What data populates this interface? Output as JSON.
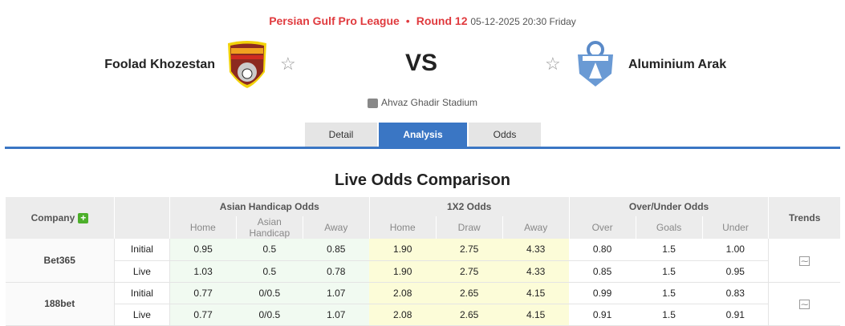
{
  "match": {
    "league": "Persian Gulf Pro League",
    "round": "Round 12",
    "datetime": "05-12-2025 20:30 Friday",
    "home": "Foolad Khozestan",
    "away": "Aluminium Arak",
    "vs": "VS",
    "venue": "Ahvaz Ghadir Stadium"
  },
  "tabs": [
    {
      "label": "Detail"
    },
    {
      "label": "Analysis",
      "active": true
    },
    {
      "label": "Odds"
    }
  ],
  "section_title": "Live Odds Comparison",
  "table": {
    "headers": {
      "company": "Company",
      "ah": "Asian Handicap Odds",
      "x2": "1X2 Odds",
      "ou": "Over/Under Odds",
      "trends": "Trends",
      "sub": [
        "Home",
        "Asian Handicap",
        "Away",
        "Home",
        "Draw",
        "Away",
        "Over",
        "Goals",
        "Under"
      ]
    },
    "companies": [
      {
        "name": "Bet365",
        "rows": [
          {
            "type": "Initial",
            "vals": [
              "0.95",
              "0.5",
              "0.85",
              "1.90",
              "2.75",
              "4.33",
              "0.80",
              "1.5",
              "1.00"
            ]
          },
          {
            "type": "Live",
            "vals": [
              "1.03",
              "0.5",
              "0.78",
              "1.90",
              "2.75",
              "4.33",
              "0.85",
              "1.5",
              "0.95"
            ]
          }
        ]
      },
      {
        "name": "188bet",
        "rows": [
          {
            "type": "Initial",
            "vals": [
              "0.77",
              "0/0.5",
              "1.07",
              "2.08",
              "2.65",
              "4.15",
              "0.99",
              "1.5",
              "0.83"
            ]
          },
          {
            "type": "Live",
            "vals": [
              "0.77",
              "0/0.5",
              "1.07",
              "2.08",
              "2.65",
              "4.15",
              "0.91",
              "1.5",
              "0.91"
            ]
          }
        ]
      }
    ]
  },
  "colors": {
    "accent": "#3a76c4",
    "league": "#e03a3e",
    "ah_bg": "#f1faf1",
    "x2_bg": "#fcfcd8"
  }
}
